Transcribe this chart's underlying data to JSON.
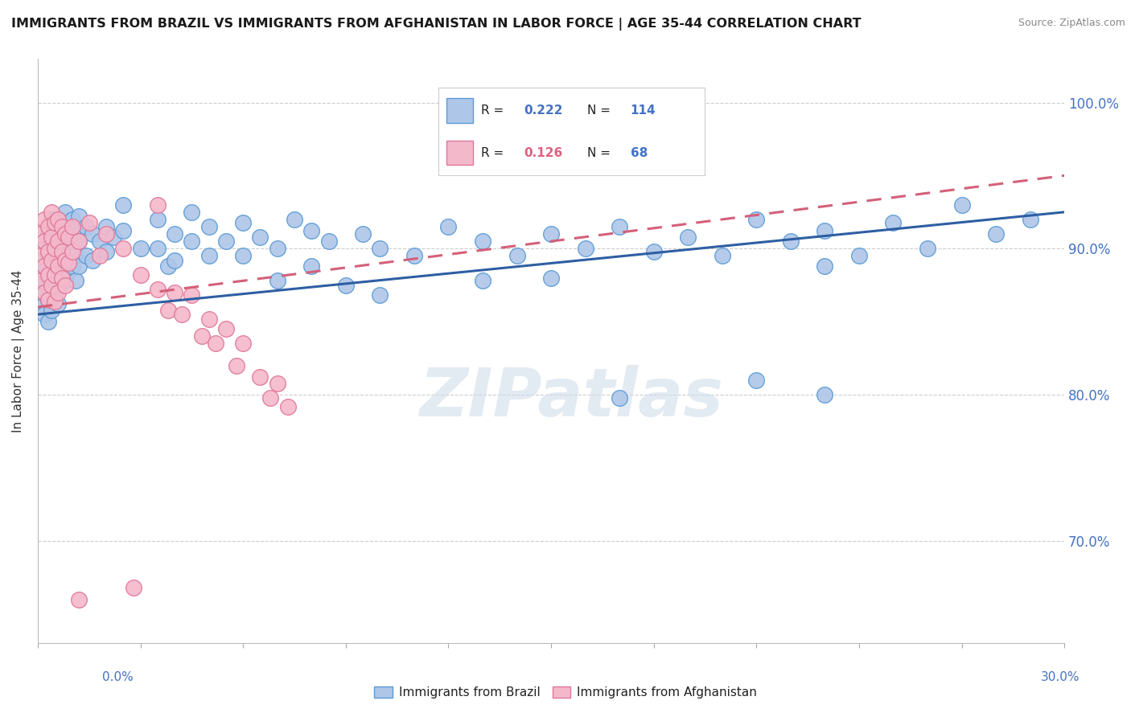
{
  "title": "IMMIGRANTS FROM BRAZIL VS IMMIGRANTS FROM AFGHANISTAN IN LABOR FORCE | AGE 35-44 CORRELATION CHART",
  "source": "Source: ZipAtlas.com",
  "ylabel": "In Labor Force | Age 35-44",
  "xlim": [
    0.0,
    0.3
  ],
  "ylim": [
    0.63,
    1.03
  ],
  "brazil_R": 0.222,
  "brazil_N": 114,
  "afghanistan_R": 0.126,
  "afghanistan_N": 68,
  "brazil_color": "#aec6e8",
  "brazil_edge_color": "#5b9bd5",
  "afghanistan_color": "#f4b8cb",
  "afghanistan_edge_color": "#e07898",
  "brazil_trendline": [
    [
      0.0,
      0.855
    ],
    [
      0.3,
      0.925
    ]
  ],
  "afghanistan_trendline": [
    [
      0.0,
      0.86
    ],
    [
      0.3,
      0.95
    ]
  ],
  "brazil_line_color": "#2e5fa3",
  "afghanistan_line_color": "#d4607a",
  "watermark": "ZIPatlas",
  "watermark_color": "#d0dcea",
  "ytick_vals": [
    0.7,
    0.8,
    0.9,
    1.0
  ],
  "ytick_labels": [
    "70.0%",
    "80.0%",
    "90.0%",
    "100.0%"
  ],
  "bottom_legend_brazil": "Immigrants from Brazil",
  "bottom_legend_afghanistan": "Immigrants from Afghanistan",
  "brazil_scatter": [
    [
      0.001,
      0.88
    ],
    [
      0.001,
      0.87
    ],
    [
      0.001,
      0.86
    ],
    [
      0.002,
      0.9
    ],
    [
      0.002,
      0.885
    ],
    [
      0.002,
      0.87
    ],
    [
      0.002,
      0.855
    ],
    [
      0.003,
      0.91
    ],
    [
      0.003,
      0.895
    ],
    [
      0.003,
      0.88
    ],
    [
      0.003,
      0.865
    ],
    [
      0.003,
      0.85
    ],
    [
      0.004,
      0.92
    ],
    [
      0.004,
      0.905
    ],
    [
      0.004,
      0.89
    ],
    [
      0.004,
      0.875
    ],
    [
      0.004,
      0.858
    ],
    [
      0.005,
      0.915
    ],
    [
      0.005,
      0.9
    ],
    [
      0.005,
      0.885
    ],
    [
      0.005,
      0.868
    ],
    [
      0.006,
      0.92
    ],
    [
      0.006,
      0.908
    ],
    [
      0.006,
      0.892
    ],
    [
      0.006,
      0.878
    ],
    [
      0.006,
      0.862
    ],
    [
      0.007,
      0.915
    ],
    [
      0.007,
      0.9
    ],
    [
      0.007,
      0.885
    ],
    [
      0.008,
      0.925
    ],
    [
      0.008,
      0.91
    ],
    [
      0.008,
      0.892
    ],
    [
      0.008,
      0.878
    ],
    [
      0.009,
      0.918
    ],
    [
      0.009,
      0.9
    ],
    [
      0.009,
      0.885
    ],
    [
      0.01,
      0.92
    ],
    [
      0.01,
      0.905
    ],
    [
      0.01,
      0.888
    ],
    [
      0.011,
      0.912
    ],
    [
      0.011,
      0.895
    ],
    [
      0.011,
      0.878
    ],
    [
      0.012,
      0.922
    ],
    [
      0.012,
      0.905
    ],
    [
      0.012,
      0.888
    ],
    [
      0.014,
      0.915
    ],
    [
      0.014,
      0.895
    ],
    [
      0.016,
      0.91
    ],
    [
      0.016,
      0.892
    ],
    [
      0.018,
      0.905
    ],
    [
      0.02,
      0.915
    ],
    [
      0.02,
      0.898
    ],
    [
      0.022,
      0.908
    ],
    [
      0.025,
      0.93
    ],
    [
      0.025,
      0.912
    ],
    [
      0.03,
      0.9
    ],
    [
      0.035,
      0.92
    ],
    [
      0.035,
      0.9
    ],
    [
      0.038,
      0.888
    ],
    [
      0.04,
      0.91
    ],
    [
      0.04,
      0.892
    ],
    [
      0.045,
      0.925
    ],
    [
      0.045,
      0.905
    ],
    [
      0.05,
      0.915
    ],
    [
      0.05,
      0.895
    ],
    [
      0.055,
      0.905
    ],
    [
      0.06,
      0.918
    ],
    [
      0.06,
      0.895
    ],
    [
      0.065,
      0.908
    ],
    [
      0.07,
      0.9
    ],
    [
      0.07,
      0.878
    ],
    [
      0.075,
      0.92
    ],
    [
      0.08,
      0.912
    ],
    [
      0.08,
      0.888
    ],
    [
      0.085,
      0.905
    ],
    [
      0.09,
      0.875
    ],
    [
      0.095,
      0.91
    ],
    [
      0.1,
      0.9
    ],
    [
      0.1,
      0.868
    ],
    [
      0.11,
      0.895
    ],
    [
      0.12,
      0.915
    ],
    [
      0.13,
      0.905
    ],
    [
      0.13,
      0.878
    ],
    [
      0.14,
      0.895
    ],
    [
      0.15,
      0.91
    ],
    [
      0.15,
      0.88
    ],
    [
      0.16,
      0.9
    ],
    [
      0.17,
      0.915
    ],
    [
      0.18,
      0.898
    ],
    [
      0.19,
      0.908
    ],
    [
      0.2,
      0.895
    ],
    [
      0.21,
      0.92
    ],
    [
      0.22,
      0.905
    ],
    [
      0.23,
      0.912
    ],
    [
      0.23,
      0.888
    ],
    [
      0.24,
      0.895
    ],
    [
      0.25,
      0.918
    ],
    [
      0.26,
      0.9
    ],
    [
      0.27,
      0.93
    ],
    [
      0.28,
      0.91
    ],
    [
      0.29,
      0.92
    ],
    [
      0.17,
      0.798
    ],
    [
      0.21,
      0.81
    ],
    [
      0.23,
      0.8
    ]
  ],
  "afghanistan_scatter": [
    [
      0.001,
      0.91
    ],
    [
      0.001,
      0.895
    ],
    [
      0.001,
      0.878
    ],
    [
      0.002,
      0.92
    ],
    [
      0.002,
      0.905
    ],
    [
      0.002,
      0.888
    ],
    [
      0.002,
      0.87
    ],
    [
      0.003,
      0.915
    ],
    [
      0.003,
      0.898
    ],
    [
      0.003,
      0.882
    ],
    [
      0.003,
      0.865
    ],
    [
      0.004,
      0.925
    ],
    [
      0.004,
      0.908
    ],
    [
      0.004,
      0.892
    ],
    [
      0.004,
      0.875
    ],
    [
      0.005,
      0.918
    ],
    [
      0.005,
      0.9
    ],
    [
      0.005,
      0.882
    ],
    [
      0.005,
      0.864
    ],
    [
      0.006,
      0.92
    ],
    [
      0.006,
      0.905
    ],
    [
      0.006,
      0.888
    ],
    [
      0.006,
      0.87
    ],
    [
      0.007,
      0.915
    ],
    [
      0.007,
      0.898
    ],
    [
      0.007,
      0.88
    ],
    [
      0.008,
      0.91
    ],
    [
      0.008,
      0.892
    ],
    [
      0.008,
      0.875
    ],
    [
      0.009,
      0.908
    ],
    [
      0.009,
      0.89
    ],
    [
      0.01,
      0.915
    ],
    [
      0.01,
      0.898
    ],
    [
      0.012,
      0.905
    ],
    [
      0.015,
      0.918
    ],
    [
      0.018,
      0.895
    ],
    [
      0.02,
      0.91
    ],
    [
      0.025,
      0.9
    ],
    [
      0.03,
      0.882
    ],
    [
      0.035,
      0.872
    ],
    [
      0.038,
      0.858
    ],
    [
      0.04,
      0.87
    ],
    [
      0.042,
      0.855
    ],
    [
      0.045,
      0.868
    ],
    [
      0.048,
      0.84
    ],
    [
      0.05,
      0.852
    ],
    [
      0.052,
      0.835
    ],
    [
      0.055,
      0.845
    ],
    [
      0.058,
      0.82
    ],
    [
      0.06,
      0.835
    ],
    [
      0.065,
      0.812
    ],
    [
      0.068,
      0.798
    ],
    [
      0.07,
      0.808
    ],
    [
      0.073,
      0.792
    ],
    [
      0.035,
      0.93
    ],
    [
      0.012,
      0.66
    ],
    [
      0.028,
      0.668
    ]
  ]
}
